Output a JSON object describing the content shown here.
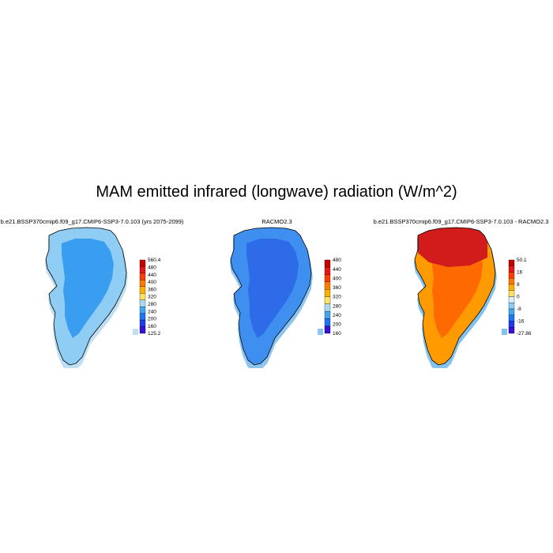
{
  "title": "MAM emitted infrared (longwave) radiation (W/m^2)",
  "panels": [
    {
      "title": "b.e21.BSSP370cmip6.f09_g17.CMIP6-SSP3-7.0.103 (yrs 2075-2099)",
      "colorbar": {
        "labels": [
          "560.4",
          "480",
          "440",
          "400",
          "360",
          "320",
          "280",
          "240",
          "200",
          "160",
          "125.2"
        ],
        "colors": [
          "#c40000",
          "#e81515",
          "#ff3c00",
          "#ff7a00",
          "#ffb000",
          "#ffe060",
          "#a9d9f2",
          "#42a6f0",
          "#1e74f5",
          "#1c3cf0",
          "#3a10d8"
        ]
      },
      "field_colors": {
        "interior": "#3a9ef0",
        "edge": "#8fcdf5",
        "coast": "#c0dff2"
      }
    },
    {
      "title": "RACMO2.3",
      "colorbar": {
        "labels": [
          "480",
          "440",
          "400",
          "360",
          "320",
          "280",
          "240",
          "200",
          "160"
        ],
        "colors": [
          "#c40000",
          "#e81515",
          "#ff3c00",
          "#ff7a00",
          "#ffb000",
          "#ffe060",
          "#a9d9f2",
          "#42a6f0",
          "#1e74f5",
          "#3a10d8"
        ]
      },
      "field_colors": {
        "interior": "#2e6be8",
        "edge": "#3f8ff0",
        "coast": "#8cc6f0"
      }
    },
    {
      "title": "b.e21.BSSP370cmip6.f09_g17.CMIP6-SSP3-7.0.103 - RACMO2.3",
      "colorbar": {
        "labels": [
          "50.1",
          "16",
          "8",
          "0",
          "-8",
          "-16",
          "-27.86"
        ],
        "colors": [
          "#c40000",
          "#e81515",
          "#ff3c00",
          "#ff7a00",
          "#ffb000",
          "#ffe060",
          "#d8eef8",
          "#8fcdf5",
          "#42a6f0",
          "#1e74f5",
          "#1c3cf0",
          "#3a10d8"
        ]
      },
      "field_colors": {
        "interior": "#ff6a00",
        "edge": "#ff9a00",
        "coast": "#80c2f0",
        "north": "#d21c1c"
      }
    }
  ]
}
